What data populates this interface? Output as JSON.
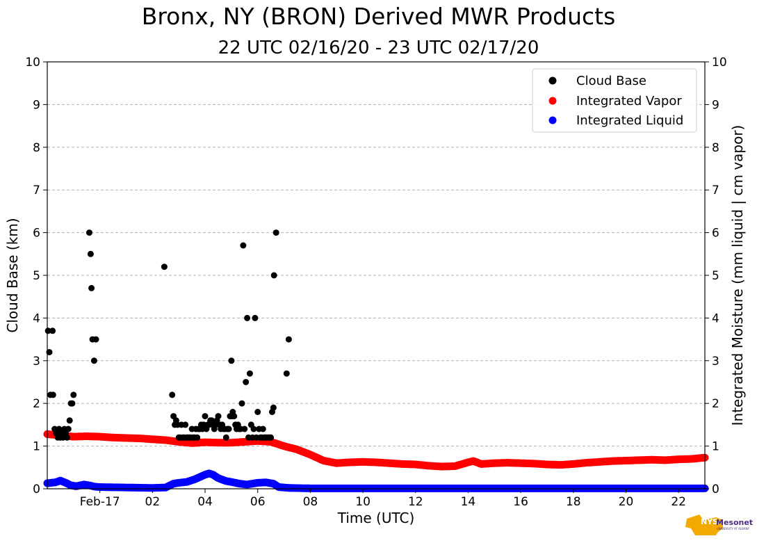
{
  "title": "Bronx, NY (BRON) Derived MWR Products",
  "subtitle": "22 UTC 02/16/20 - 23 UTC 02/17/20",
  "logo": {
    "name": "NYS Mesonet",
    "text_nys": "NYS",
    "text_mesonet": "Mesonet",
    "text_univ": "UNIVERSITY AT ALBANY"
  },
  "chart_data": {
    "type": "scatter",
    "xlabel": "Time (UTC)",
    "ylabel_left": "Cloud Base (km)",
    "ylabel_right": "Integrated Moisture (mm liquid | cm vapor)",
    "xlim": [
      -2,
      23
    ],
    "ylim": [
      0,
      10
    ],
    "x_units": "hours UTC since 00 UTC 02/17/20",
    "x_tick_values": [
      0,
      2,
      4,
      6,
      8,
      10,
      12,
      14,
      16,
      18,
      20,
      22
    ],
    "x_tick_labels": [
      "Feb-17",
      "02",
      "04",
      "06",
      "08",
      "10",
      "12",
      "14",
      "16",
      "18",
      "20",
      "22"
    ],
    "y_ticks": [
      0,
      1,
      2,
      3,
      4,
      5,
      6,
      7,
      8,
      9,
      10
    ],
    "y_tick_labels": [
      "0",
      "1",
      "2",
      "3",
      "4",
      "5",
      "6",
      "7",
      "8",
      "9",
      "10"
    ],
    "grid": "horizontal dashed",
    "legend_position": "top-right",
    "series": [
      {
        "name": "Cloud Base",
        "color": "#000000",
        "style": "sparse",
        "points": [
          [
            -1.97,
            3.7
          ],
          [
            -1.92,
            3.2
          ],
          [
            -1.88,
            2.2
          ],
          [
            -1.8,
            3.7
          ],
          [
            -1.78,
            2.2
          ],
          [
            -1.72,
            1.4
          ],
          [
            -1.66,
            1.3
          ],
          [
            -1.6,
            1.2
          ],
          [
            -1.55,
            1.4
          ],
          [
            -1.5,
            1.2
          ],
          [
            -1.45,
            1.3
          ],
          [
            -1.4,
            1.2
          ],
          [
            -1.35,
            1.4
          ],
          [
            -1.3,
            1.3
          ],
          [
            -1.25,
            1.2
          ],
          [
            -1.2,
            1.4
          ],
          [
            -1.15,
            1.6
          ],
          [
            -1.1,
            2.0
          ],
          [
            -1.05,
            2.0
          ],
          [
            -1.0,
            2.2
          ],
          [
            -0.4,
            6.0
          ],
          [
            -0.35,
            5.5
          ],
          [
            -0.32,
            4.7
          ],
          [
            -0.28,
            3.5
          ],
          [
            -0.22,
            3.0
          ],
          [
            -0.15,
            3.5
          ],
          [
            2.45,
            5.2
          ],
          [
            2.75,
            2.2
          ],
          [
            2.8,
            1.7
          ],
          [
            2.85,
            1.5
          ],
          [
            2.9,
            1.6
          ],
          [
            2.95,
            1.5
          ],
          [
            3.0,
            1.2
          ],
          [
            3.05,
            1.2
          ],
          [
            3.1,
            1.5
          ],
          [
            3.15,
            1.2
          ],
          [
            3.2,
            1.2
          ],
          [
            3.25,
            1.5
          ],
          [
            3.3,
            1.2
          ],
          [
            3.35,
            1.2
          ],
          [
            3.4,
            1.2
          ],
          [
            3.45,
            1.2
          ],
          [
            3.5,
            1.4
          ],
          [
            3.55,
            1.2
          ],
          [
            3.6,
            1.2
          ],
          [
            3.65,
            1.4
          ],
          [
            3.7,
            1.2
          ],
          [
            3.75,
            1.4
          ],
          [
            3.8,
            1.4
          ],
          [
            3.85,
            1.5
          ],
          [
            3.9,
            1.4
          ],
          [
            3.95,
            1.5
          ],
          [
            4.0,
            1.7
          ],
          [
            4.05,
            1.4
          ],
          [
            4.1,
            1.5
          ],
          [
            4.15,
            1.5
          ],
          [
            4.2,
            1.6
          ],
          [
            4.25,
            1.6
          ],
          [
            4.3,
            1.5
          ],
          [
            4.35,
            1.4
          ],
          [
            4.4,
            1.5
          ],
          [
            4.45,
            1.6
          ],
          [
            4.5,
            1.7
          ],
          [
            4.55,
            1.5
          ],
          [
            4.6,
            1.4
          ],
          [
            4.65,
            1.5
          ],
          [
            4.7,
            1.4
          ],
          [
            4.75,
            1.4
          ],
          [
            4.8,
            1.2
          ],
          [
            4.85,
            1.4
          ],
          [
            4.9,
            1.4
          ],
          [
            4.95,
            1.7
          ],
          [
            5.0,
            3.0
          ],
          [
            5.02,
            1.7
          ],
          [
            5.05,
            1.8
          ],
          [
            5.1,
            1.7
          ],
          [
            5.15,
            1.5
          ],
          [
            5.2,
            1.4
          ],
          [
            5.25,
            1.5
          ],
          [
            5.3,
            1.4
          ],
          [
            5.35,
            1.4
          ],
          [
            5.4,
            2.0
          ],
          [
            5.45,
            5.7
          ],
          [
            5.5,
            1.4
          ],
          [
            5.55,
            2.5
          ],
          [
            5.6,
            4.0
          ],
          [
            5.65,
            1.2
          ],
          [
            5.7,
            2.7
          ],
          [
            5.75,
            1.5
          ],
          [
            5.8,
            1.2
          ],
          [
            5.85,
            1.4
          ],
          [
            5.9,
            4.0
          ],
          [
            5.95,
            1.2
          ],
          [
            6.0,
            1.8
          ],
          [
            6.05,
            1.4
          ],
          [
            6.1,
            1.2
          ],
          [
            6.15,
            1.2
          ],
          [
            6.2,
            1.4
          ],
          [
            6.25,
            1.2
          ],
          [
            6.3,
            1.2
          ],
          [
            6.35,
            1.2
          ],
          [
            6.4,
            1.2
          ],
          [
            6.45,
            1.2
          ],
          [
            6.5,
            1.2
          ],
          [
            6.55,
            1.8
          ],
          [
            6.6,
            1.9
          ],
          [
            6.62,
            5.0
          ],
          [
            6.7,
            6.0
          ],
          [
            7.1,
            2.7
          ],
          [
            7.18,
            3.5
          ]
        ]
      },
      {
        "name": "Integrated Vapor",
        "color": "#ff0000",
        "style": "dense",
        "points": [
          [
            -2.0,
            1.28
          ],
          [
            -1.5,
            1.25
          ],
          [
            -1.0,
            1.22
          ],
          [
            -0.5,
            1.23
          ],
          [
            0.0,
            1.22
          ],
          [
            0.5,
            1.2
          ],
          [
            1.0,
            1.19
          ],
          [
            1.5,
            1.18
          ],
          [
            2.0,
            1.16
          ],
          [
            2.5,
            1.14
          ],
          [
            3.0,
            1.1
          ],
          [
            3.5,
            1.07
          ],
          [
            4.0,
            1.09
          ],
          [
            4.5,
            1.08
          ],
          [
            5.0,
            1.08
          ],
          [
            5.5,
            1.1
          ],
          [
            6.0,
            1.12
          ],
          [
            6.5,
            1.1
          ],
          [
            7.0,
            1.0
          ],
          [
            7.5,
            0.92
          ],
          [
            8.0,
            0.8
          ],
          [
            8.5,
            0.66
          ],
          [
            9.0,
            0.6
          ],
          [
            9.5,
            0.62
          ],
          [
            10.0,
            0.63
          ],
          [
            10.5,
            0.62
          ],
          [
            11.0,
            0.6
          ],
          [
            11.5,
            0.58
          ],
          [
            12.0,
            0.57
          ],
          [
            12.5,
            0.54
          ],
          [
            13.0,
            0.52
          ],
          [
            13.5,
            0.53
          ],
          [
            14.0,
            0.62
          ],
          [
            14.2,
            0.65
          ],
          [
            14.5,
            0.58
          ],
          [
            15.0,
            0.6
          ],
          [
            15.5,
            0.61
          ],
          [
            16.0,
            0.6
          ],
          [
            16.5,
            0.59
          ],
          [
            17.0,
            0.57
          ],
          [
            17.5,
            0.56
          ],
          [
            18.0,
            0.58
          ],
          [
            18.5,
            0.61
          ],
          [
            19.0,
            0.63
          ],
          [
            19.5,
            0.65
          ],
          [
            20.0,
            0.66
          ],
          [
            20.5,
            0.67
          ],
          [
            21.0,
            0.68
          ],
          [
            21.5,
            0.67
          ],
          [
            22.0,
            0.69
          ],
          [
            22.5,
            0.7
          ],
          [
            23.0,
            0.73
          ]
        ]
      },
      {
        "name": "Integrated Liquid",
        "color": "#0000ff",
        "style": "dense",
        "points": [
          [
            -2.0,
            0.13
          ],
          [
            -1.7,
            0.15
          ],
          [
            -1.5,
            0.19
          ],
          [
            -1.3,
            0.14
          ],
          [
            -1.1,
            0.08
          ],
          [
            -0.9,
            0.06
          ],
          [
            -0.6,
            0.1
          ],
          [
            -0.4,
            0.08
          ],
          [
            -0.2,
            0.05
          ],
          [
            0.0,
            0.04
          ],
          [
            1.0,
            0.03
          ],
          [
            2.0,
            0.02
          ],
          [
            2.5,
            0.03
          ],
          [
            2.8,
            0.12
          ],
          [
            3.0,
            0.14
          ],
          [
            3.3,
            0.16
          ],
          [
            3.6,
            0.22
          ],
          [
            4.0,
            0.33
          ],
          [
            4.15,
            0.36
          ],
          [
            4.3,
            0.33
          ],
          [
            4.5,
            0.25
          ],
          [
            4.8,
            0.18
          ],
          [
            5.0,
            0.16
          ],
          [
            5.3,
            0.12
          ],
          [
            5.6,
            0.1
          ],
          [
            6.0,
            0.14
          ],
          [
            6.3,
            0.15
          ],
          [
            6.6,
            0.12
          ],
          [
            6.8,
            0.04
          ],
          [
            7.2,
            0.02
          ],
          [
            8.0,
            0.01
          ],
          [
            9.0,
            0.01
          ],
          [
            10.0,
            0.01
          ],
          [
            12.0,
            0.01
          ],
          [
            14.0,
            0.01
          ],
          [
            16.0,
            0.01
          ],
          [
            18.0,
            0.01
          ],
          [
            20.0,
            0.01
          ],
          [
            22.0,
            0.01
          ],
          [
            23.0,
            0.01
          ]
        ]
      }
    ]
  }
}
